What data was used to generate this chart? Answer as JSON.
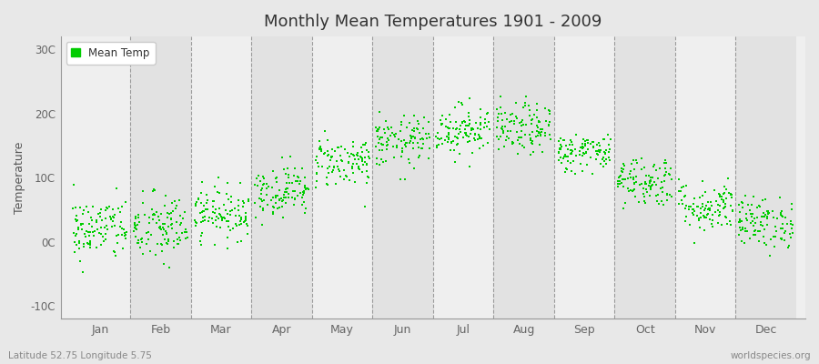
{
  "title": "Monthly Mean Temperatures 1901 - 2009",
  "ylabel": "Temperature",
  "xlabel_labels": [
    "Jan",
    "Feb",
    "Mar",
    "Apr",
    "May",
    "Jun",
    "Jul",
    "Aug",
    "Sep",
    "Oct",
    "Nov",
    "Dec"
  ],
  "ytick_labels": [
    "-10C",
    "0C",
    "10C",
    "20C",
    "30C"
  ],
  "ytick_values": [
    -10,
    0,
    10,
    20,
    30
  ],
  "ylim": [
    -12,
    32
  ],
  "background_color": "#e8e8e8",
  "plot_bg_color": "#efefef",
  "alt_band_color": "#e2e2e2",
  "dot_color": "#00cc00",
  "dot_size": 3,
  "legend_label": "Mean Temp",
  "footer_left": "Latitude 52.75 Longitude 5.75",
  "footer_right": "worldspecies.org",
  "n_years": 109,
  "monthly_mean_temps": [
    2.0,
    2.0,
    4.5,
    8.0,
    12.5,
    15.5,
    17.5,
    17.5,
    14.0,
    9.5,
    5.5,
    3.0
  ],
  "monthly_std_temps": [
    2.5,
    2.8,
    2.0,
    2.0,
    2.0,
    2.0,
    2.0,
    2.0,
    1.5,
    2.0,
    2.0,
    2.0
  ],
  "seed": 42
}
